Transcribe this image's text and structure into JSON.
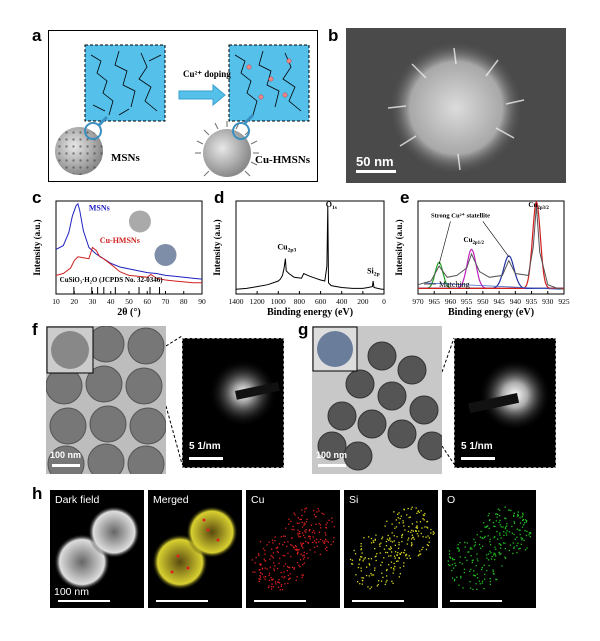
{
  "panels": {
    "a": "a",
    "b": "b",
    "c": "c",
    "d": "d",
    "e": "e",
    "f": "f",
    "g": "g",
    "h": "h"
  },
  "panel_a": {
    "arrow_label": "Cu²⁺ doping",
    "left_label": "MSNs",
    "right_label": "Cu-HMSNs"
  },
  "panel_b": {
    "scalebar": "50 nm"
  },
  "panel_f": {
    "scalebar_tem": "100 nm",
    "scalebar_saed": "5 1/nm"
  },
  "panel_g": {
    "scalebar_tem": "100 nm",
    "scalebar_saed": "5 1/nm"
  },
  "panel_h": {
    "maps": [
      "Dark field",
      "Merged",
      "Cu",
      "Si",
      "O"
    ],
    "scalebar": "100 nm",
    "colors": {
      "Cu": "#e02020",
      "Si": "#d8d820",
      "O": "#20c020"
    }
  },
  "chart_data": [
    {
      "id": "c",
      "type": "line",
      "xlabel": "2θ (°)",
      "ylabel": "Intensity (a.u.)",
      "xlim": [
        10,
        90
      ],
      "xticks": [
        10,
        20,
        30,
        40,
        50,
        60,
        70,
        80,
        90
      ],
      "annotation": "CuSiO₃·H₂O (JCPDS No. 32-0346)",
      "reference_peaks": [
        19.8,
        29.6,
        32.8,
        36.2,
        42.5,
        55.5,
        61.5,
        66.7
      ],
      "series": [
        {
          "name": "MSNs",
          "color": "#2020c0",
          "x": [
            10,
            14,
            17,
            19,
            21,
            22,
            23,
            25,
            28,
            32,
            36,
            40,
            45,
            50,
            55,
            60,
            65,
            70,
            75,
            80,
            85,
            90
          ],
          "y": [
            0.48,
            0.52,
            0.66,
            0.84,
            0.95,
            0.97,
            0.9,
            0.68,
            0.5,
            0.43,
            0.38,
            0.33,
            0.29,
            0.27,
            0.25,
            0.23,
            0.22,
            0.2,
            0.19,
            0.18,
            0.17,
            0.16
          ]
        },
        {
          "name": "Cu-HMSNs",
          "color": "#d02020",
          "x": [
            10,
            14,
            18,
            20,
            22,
            25,
            28,
            30,
            32,
            34,
            36,
            40,
            45,
            50,
            55,
            60,
            62,
            65,
            70,
            75,
            80,
            85,
            90
          ],
          "y": [
            0.2,
            0.22,
            0.28,
            0.36,
            0.4,
            0.39,
            0.38,
            0.5,
            0.47,
            0.4,
            0.38,
            0.32,
            0.24,
            0.2,
            0.19,
            0.18,
            0.21,
            0.17,
            0.15,
            0.14,
            0.13,
            0.12,
            0.12
          ]
        }
      ]
    },
    {
      "id": "d",
      "type": "line",
      "xlabel": "Binding energy (eV)",
      "ylabel": "Intensity (a.u.)",
      "xlim": [
        1400,
        0
      ],
      "xticks": [
        1400,
        1200,
        1000,
        800,
        600,
        400,
        200,
        0
      ],
      "peak_labels": [
        {
          "text": "Cu2p3",
          "x": 933
        },
        {
          "text": "O1s",
          "x": 532
        },
        {
          "text": "Si2p",
          "x": 103
        }
      ],
      "series": [
        {
          "name": "",
          "color": "#000000",
          "x": [
            1400,
            1300,
            1200,
            1100,
            1000,
            980,
            960,
            945,
            933,
            925,
            900,
            850,
            780,
            760,
            720,
            700,
            650,
            600,
            560,
            540,
            532,
            525,
            500,
            400,
            300,
            250,
            200,
            150,
            110,
            103,
            95,
            60,
            20,
            0
          ],
          "y": [
            0.05,
            0.06,
            0.08,
            0.1,
            0.14,
            0.16,
            0.2,
            0.28,
            0.38,
            0.25,
            0.22,
            0.18,
            0.17,
            0.22,
            0.2,
            0.19,
            0.17,
            0.15,
            0.14,
            0.3,
            0.95,
            0.12,
            0.09,
            0.07,
            0.06,
            0.06,
            0.06,
            0.07,
            0.08,
            0.14,
            0.07,
            0.06,
            0.05,
            0.05
          ]
        }
      ]
    },
    {
      "id": "e",
      "type": "line",
      "xlabel": "Binding energy (eV)",
      "ylabel": "Intensity (a.u.)",
      "xlim": [
        970,
        925
      ],
      "xticks": [
        970,
        965,
        960,
        955,
        950,
        945,
        940,
        935,
        930,
        925
      ],
      "legend": "Matching",
      "annotation": "Strong Cu²⁺ statellite",
      "peak_labels": [
        {
          "text": "Cu2p1/2",
          "x": 953.5
        },
        {
          "text": "Cu2p3/2",
          "x": 933.5
        }
      ],
      "series": [
        {
          "name": "Matching",
          "color": "#555555",
          "x": [
            970,
            966,
            963.5,
            961,
            958,
            955,
            953.5,
            951,
            948,
            944,
            942,
            940,
            936,
            934.5,
            933.5,
            932.5,
            930,
            927,
            925
          ],
          "y": [
            0.1,
            0.14,
            0.3,
            0.18,
            0.2,
            0.28,
            0.43,
            0.24,
            0.18,
            0.2,
            0.36,
            0.22,
            0.2,
            0.5,
            0.95,
            0.45,
            0.1,
            0.06,
            0.05
          ]
        }
      ],
      "component_peaks": [
        {
          "center": 963.5,
          "height": 0.28,
          "width": 1.2,
          "color": "#20a020"
        },
        {
          "center": 953.5,
          "height": 0.42,
          "width": 1.4,
          "color": "#c020c0"
        },
        {
          "center": 942.0,
          "height": 0.35,
          "width": 1.6,
          "color": "#2030a0"
        },
        {
          "center": 933.5,
          "height": 0.93,
          "width": 1.2,
          "color": "#d02020"
        }
      ]
    }
  ]
}
